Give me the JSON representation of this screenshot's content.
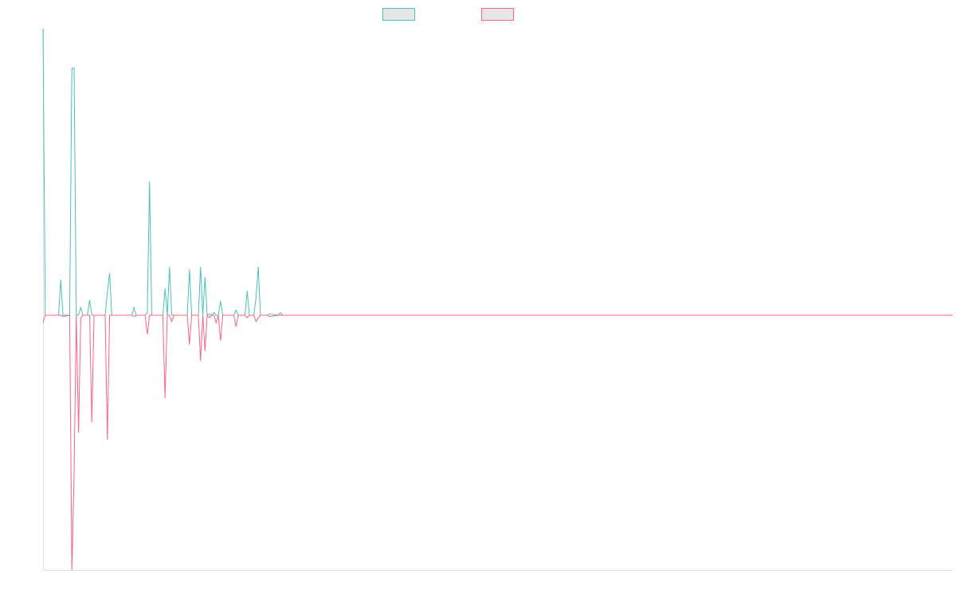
{
  "chart_data": {
    "type": "line",
    "title": "",
    "xlabel": "",
    "ylabel": "",
    "grid": false,
    "legend_position": "top-center",
    "ylim": [
      -1.0,
      1.125
    ],
    "series": [
      {
        "color": "#4bc0c0",
        "fill": "#e6e6e6",
        "points": [
          [
            0,
            1.125
          ],
          [
            1,
            0
          ],
          [
            7,
            0
          ],
          [
            8,
            0.14
          ],
          [
            9,
            0
          ],
          [
            10,
            0
          ],
          [
            11,
            0
          ],
          [
            12,
            0
          ],
          [
            13,
            0.97
          ],
          [
            14,
            0.97
          ],
          [
            15,
            0
          ],
          [
            16,
            0
          ],
          [
            17,
            0.03
          ],
          [
            18,
            0
          ],
          [
            19,
            0
          ],
          [
            20,
            0
          ],
          [
            21,
            0.06
          ],
          [
            22,
            0
          ],
          [
            23,
            0
          ],
          [
            28,
            0
          ],
          [
            29,
            0.09
          ],
          [
            30,
            0.165
          ],
          [
            31,
            0
          ],
          [
            40,
            0
          ],
          [
            41,
            0.03
          ],
          [
            42,
            0
          ],
          [
            46,
            0
          ],
          [
            47,
            0.01
          ],
          [
            48,
            0.525
          ],
          [
            49,
            0
          ],
          [
            54,
            0
          ],
          [
            55,
            0.105
          ],
          [
            56,
            0
          ],
          [
            57,
            0.19
          ],
          [
            58,
            0
          ],
          [
            65,
            0
          ],
          [
            66,
            0.18
          ],
          [
            67,
            0
          ],
          [
            70,
            0
          ],
          [
            71,
            0.19
          ],
          [
            72,
            0
          ],
          [
            73,
            0.15
          ],
          [
            74,
            0
          ],
          [
            75,
            0.005
          ],
          [
            76,
            0
          ],
          [
            77,
            0.01
          ],
          [
            78,
            0
          ],
          [
            79,
            0
          ],
          [
            80,
            0.055
          ],
          [
            81,
            0
          ],
          [
            86,
            0
          ],
          [
            87,
            0.02
          ],
          [
            88,
            0
          ],
          [
            91,
            0
          ],
          [
            92,
            0.095
          ],
          [
            93,
            0
          ],
          [
            95,
            0
          ],
          [
            96,
            0.07
          ],
          [
            97,
            0.19
          ],
          [
            98,
            0
          ],
          [
            101,
            0
          ],
          [
            102,
            0.005
          ],
          [
            106,
            0
          ],
          [
            107,
            0.01
          ],
          [
            108,
            0
          ],
          [
            410,
            0
          ]
        ]
      },
      {
        "color": "#ff6384",
        "fill": "#e6e6e6",
        "points": [
          [
            0,
            -0.03
          ],
          [
            1,
            0
          ],
          [
            7,
            0
          ],
          [
            8,
            0
          ],
          [
            9,
            -0.005
          ],
          [
            12,
            0
          ],
          [
            13,
            -1.0
          ],
          [
            14,
            -0.62
          ],
          [
            15,
            0
          ],
          [
            16,
            -0.46
          ],
          [
            17,
            -0.01
          ],
          [
            18,
            0
          ],
          [
            20,
            0
          ],
          [
            21,
            0
          ],
          [
            22,
            -0.42
          ],
          [
            23,
            0
          ],
          [
            28,
            0
          ],
          [
            29,
            -0.49
          ],
          [
            30,
            0
          ],
          [
            40,
            0
          ],
          [
            41,
            -0.005
          ],
          [
            42,
            0
          ],
          [
            46,
            0
          ],
          [
            47,
            -0.075
          ],
          [
            48,
            0
          ],
          [
            54,
            0
          ],
          [
            55,
            -0.325
          ],
          [
            56,
            0
          ],
          [
            57,
            0
          ],
          [
            58,
            -0.025
          ],
          [
            59,
            0
          ],
          [
            65,
            0
          ],
          [
            66,
            -0.115
          ],
          [
            67,
            0
          ],
          [
            68,
            0
          ],
          [
            70,
            0
          ],
          [
            71,
            -0.18
          ],
          [
            72,
            0
          ],
          [
            73,
            -0.14
          ],
          [
            74,
            0
          ],
          [
            75,
            -0.01
          ],
          [
            76,
            0
          ],
          [
            77,
            0
          ],
          [
            78,
            -0.03
          ],
          [
            79,
            0
          ],
          [
            80,
            -0.1
          ],
          [
            81,
            0
          ],
          [
            86,
            0
          ],
          [
            87,
            -0.045
          ],
          [
            88,
            0
          ],
          [
            91,
            0
          ],
          [
            92,
            -0.01
          ],
          [
            93,
            0
          ],
          [
            95,
            0
          ],
          [
            96,
            -0.025
          ],
          [
            97,
            -0.01
          ],
          [
            98,
            0
          ],
          [
            101,
            0
          ],
          [
            102,
            -0.005
          ],
          [
            106,
            0
          ],
          [
            410,
            0
          ]
        ]
      }
    ]
  }
}
